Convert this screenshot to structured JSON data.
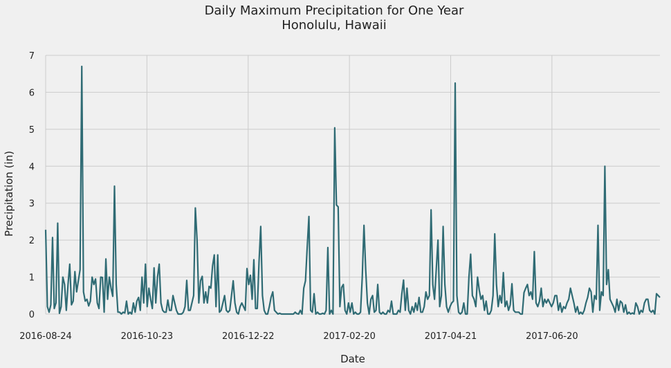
{
  "chart_data": {
    "type": "line",
    "title": "Daily Maximum Precipitation for One Year",
    "subtitle": "Honolulu, Hawaii",
    "xlabel": "Date",
    "ylabel": "Precipitation (in)",
    "x_start": "2016-08-24",
    "x_end": "2017-08-23",
    "xticks": [
      "2016-08-24",
      "2016-10-23",
      "2016-12-22",
      "2017-02-20",
      "2017-04-21",
      "2017-06-20"
    ],
    "ylim": [
      0,
      7
    ],
    "yticks": [
      0,
      1,
      2,
      3,
      4,
      5,
      6,
      7
    ],
    "grid": true,
    "line_color": "#2f6b74",
    "values": [
      2.28,
      0.2,
      0.05,
      0.25,
      2.07,
      0.15,
      0.3,
      2.46,
      0.02,
      0.2,
      1.0,
      0.8,
      0.1,
      0.8,
      1.35,
      0.25,
      0.35,
      1.15,
      0.6,
      0.9,
      1.2,
      6.7,
      0.6,
      0.35,
      0.4,
      0.22,
      0.35,
      1.0,
      0.8,
      0.95,
      0.3,
      0.15,
      1.0,
      0.99,
      0.05,
      1.49,
      0.4,
      1.0,
      0.7,
      0.48,
      3.46,
      0.8,
      0.05,
      0.05,
      0.0,
      0.05,
      0.03,
      0.35,
      0.0,
      0.05,
      0.0,
      0.3,
      0.05,
      0.35,
      0.45,
      0.1,
      1.0,
      0.3,
      1.35,
      0.2,
      0.7,
      0.4,
      0.15,
      1.25,
      0.3,
      1.0,
      1.35,
      0.3,
      0.1,
      0.05,
      0.05,
      0.38,
      0.1,
      0.1,
      0.5,
      0.3,
      0.1,
      0.0,
      0.0,
      0.0,
      0.05,
      0.2,
      0.91,
      0.1,
      0.1,
      0.3,
      0.5,
      2.87,
      2.0,
      0.3,
      0.9,
      1.02,
      0.3,
      0.6,
      0.3,
      0.75,
      0.7,
      1.3,
      1.6,
      0.2,
      1.6,
      0.05,
      0.1,
      0.3,
      0.5,
      0.1,
      0.05,
      0.1,
      0.5,
      0.9,
      0.3,
      0.05,
      0.0,
      0.2,
      0.3,
      0.2,
      0.1,
      1.23,
      0.8,
      1.05,
      0.4,
      1.47,
      0.15,
      0.15,
      1.4,
      2.37,
      0.5,
      0.1,
      0.0,
      0.0,
      0.2,
      0.45,
      0.6,
      0.1,
      0.05,
      0.0,
      0.02,
      0.0,
      0.0,
      0.0,
      0.0,
      0.0,
      0.0,
      0.0,
      0.0,
      0.05,
      0.01,
      0.0,
      0.1,
      0.0,
      0.7,
      0.9,
      1.8,
      2.64,
      0.1,
      0.05,
      0.55,
      0.0,
      0.05,
      0.0,
      0.0,
      0.02,
      0.0,
      0.1,
      1.8,
      0.0,
      0.1,
      0.0,
      5.04,
      2.95,
      2.9,
      0.2,
      0.72,
      0.8,
      0.1,
      0.0,
      0.3,
      0.05,
      0.3,
      0.0,
      0.05,
      0.0,
      0.0,
      0.05,
      1.0,
      2.4,
      1.2,
      0.3,
      0.0,
      0.4,
      0.5,
      0.05,
      0.1,
      0.8,
      0.05,
      0.0,
      0.05,
      0.0,
      0.0,
      0.1,
      0.05,
      0.35,
      0.0,
      0.0,
      0.0,
      0.1,
      0.05,
      0.55,
      0.92,
      0.1,
      0.7,
      0.1,
      0.0,
      0.2,
      0.05,
      0.3,
      0.1,
      0.45,
      0.05,
      0.05,
      0.2,
      0.6,
      0.4,
      0.5,
      2.82,
      0.8,
      0.4,
      1.2,
      2.0,
      0.2,
      0.5,
      2.37,
      0.8,
      0.2,
      0.05,
      0.2,
      0.3,
      0.35,
      6.25,
      0.5,
      0.05,
      0.0,
      0.05,
      0.3,
      0.0,
      0.0,
      1.0,
      1.62,
      0.5,
      0.4,
      0.2,
      1.0,
      0.65,
      0.4,
      0.5,
      0.1,
      0.35,
      0.0,
      0.0,
      0.1,
      0.5,
      2.17,
      0.8,
      0.2,
      0.5,
      0.3,
      1.12,
      0.2,
      0.35,
      0.1,
      0.25,
      0.82,
      0.1,
      0.05,
      0.05,
      0.05,
      0.0,
      0.0,
      0.58,
      0.7,
      0.8,
      0.5,
      0.6,
      0.4,
      1.69,
      0.3,
      0.2,
      0.35,
      0.7,
      0.2,
      0.4,
      0.3,
      0.4,
      0.3,
      0.2,
      0.3,
      0.5,
      0.5,
      0.1,
      0.3,
      0.05,
      0.2,
      0.15,
      0.3,
      0.4,
      0.7,
      0.5,
      0.3,
      0.05,
      0.2,
      0.0,
      0.05,
      0.0,
      0.1,
      0.3,
      0.45,
      0.7,
      0.6,
      0.05,
      0.5,
      0.4,
      2.4,
      0.1,
      0.6,
      0.5,
      4.0,
      0.8,
      1.2,
      0.4,
      0.3,
      0.2,
      0.05,
      0.4,
      0.1,
      0.35,
      0.3,
      0.05,
      0.25,
      0.0,
      0.05,
      0.0,
      0.03,
      0.0,
      0.3,
      0.2,
      0.0,
      0.1,
      0.05,
      0.3,
      0.4,
      0.4,
      0.1,
      0.05,
      0.1,
      0.0,
      0.55,
      0.5,
      0.45
    ]
  }
}
